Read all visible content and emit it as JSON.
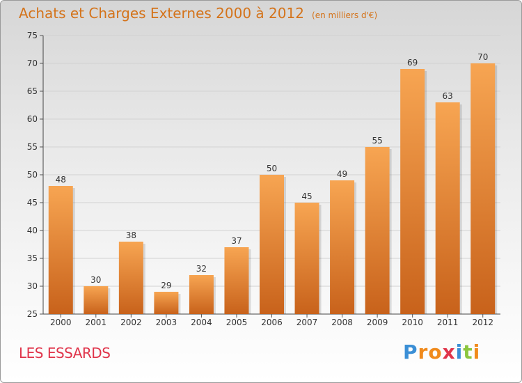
{
  "chart_data": {
    "type": "bar",
    "title": "Achats et Charges Externes 2000 à 2012",
    "subtitle": "(en milliers d'€)",
    "xlabel": "",
    "ylabel": "",
    "categories": [
      "2000",
      "2001",
      "2002",
      "2003",
      "2004",
      "2005",
      "2006",
      "2007",
      "2008",
      "2009",
      "2010",
      "2011",
      "2012"
    ],
    "values": [
      48,
      30,
      38,
      29,
      32,
      37,
      50,
      45,
      49,
      55,
      69,
      63,
      70
    ],
    "ylim": [
      25,
      75
    ],
    "yticks": [
      25,
      30,
      35,
      40,
      45,
      50,
      55,
      60,
      65,
      70,
      75
    ],
    "grid": true,
    "bar_color_top": "#f7a552",
    "bar_color_bottom": "#c8621b"
  },
  "footer": {
    "commune": "LES ESSARDS",
    "logo_letters": [
      {
        "char": "P",
        "color": "#3b8fd6"
      },
      {
        "char": "r",
        "color": "#f08a1c"
      },
      {
        "char": "o",
        "color": "#f08a1c"
      },
      {
        "char": "x",
        "color": "#e0344a"
      },
      {
        "char": "i",
        "color": "#3b8fd6"
      },
      {
        "char": "t",
        "color": "#8cc63f"
      },
      {
        "char": "i",
        "color": "#f08a1c"
      }
    ]
  }
}
